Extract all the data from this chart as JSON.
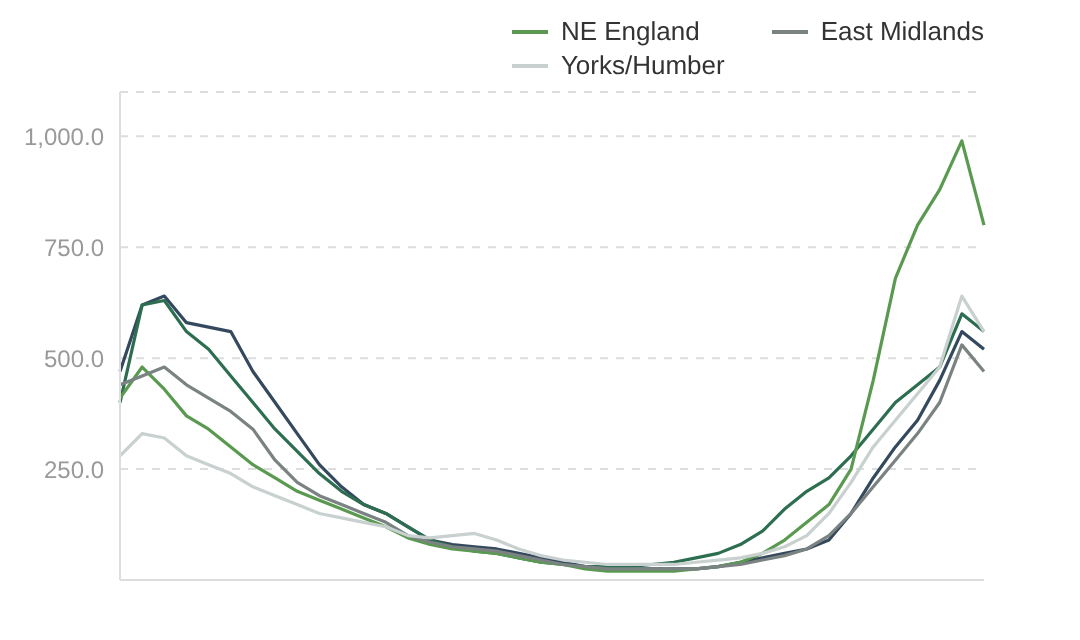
{
  "chart_data": {
    "type": "line",
    "categories": [
      null,
      null,
      null,
      null,
      null,
      null,
      null,
      null,
      null,
      null,
      null,
      null,
      null,
      null,
      null,
      null,
      null,
      null,
      null,
      null,
      null,
      null,
      null,
      null,
      null,
      null,
      null,
      null,
      null,
      null,
      null,
      null,
      null,
      null,
      null,
      null,
      null,
      null,
      null,
      null
    ],
    "series": [
      {
        "color": "#34495e",
        "values": [
          470,
          620,
          640,
          580,
          570,
          560,
          470,
          400,
          330,
          260,
          210,
          170,
          150,
          120,
          90,
          80,
          75,
          70,
          60,
          50,
          40,
          30,
          25,
          25,
          25,
          25,
          25,
          30,
          40,
          50,
          60,
          70,
          90,
          150,
          230,
          300,
          360,
          450,
          560,
          520
        ]
      },
      {
        "color": "#2e6e50",
        "values": [
          400,
          620,
          630,
          560,
          520,
          460,
          400,
          340,
          290,
          240,
          200,
          170,
          150,
          120,
          90,
          75,
          65,
          60,
          50,
          40,
          35,
          30,
          30,
          30,
          35,
          40,
          50,
          60,
          80,
          110,
          160,
          200,
          230,
          280,
          340,
          400,
          440,
          480,
          600,
          560
        ]
      },
      {
        "name": "NE England",
        "color": "#5a9a50",
        "values": [
          410,
          480,
          430,
          370,
          340,
          300,
          260,
          230,
          200,
          180,
          160,
          140,
          120,
          95,
          80,
          70,
          65,
          60,
          50,
          40,
          35,
          25,
          20,
          20,
          20,
          20,
          25,
          30,
          40,
          60,
          90,
          130,
          170,
          250,
          450,
          680,
          800,
          880,
          990,
          800
        ]
      },
      {
        "name": "East Midlands",
        "color": "#7a8282",
        "values": [
          440,
          460,
          480,
          440,
          410,
          380,
          340,
          270,
          220,
          190,
          170,
          150,
          130,
          100,
          85,
          75,
          70,
          65,
          55,
          45,
          35,
          30,
          25,
          25,
          25,
          25,
          25,
          30,
          35,
          45,
          55,
          70,
          100,
          150,
          210,
          270,
          330,
          400,
          530,
          470
        ]
      },
      {
        "name": "Yorks/Humber",
        "color": "#c8d0d0",
        "values": [
          280,
          330,
          320,
          280,
          260,
          240,
          210,
          190,
          170,
          150,
          140,
          130,
          120,
          100,
          95,
          100,
          105,
          90,
          70,
          55,
          45,
          40,
          35,
          35,
          35,
          35,
          40,
          45,
          50,
          60,
          75,
          100,
          150,
          220,
          300,
          360,
          420,
          480,
          640,
          560
        ]
      }
    ],
    "ylim": [
      0,
      1100
    ],
    "yticks": [
      {
        "value": 250,
        "label": "250.0"
      },
      {
        "value": 500,
        "label": "500.0"
      },
      {
        "value": 750,
        "label": "750.0"
      },
      {
        "value": 1000,
        "label": "1,000.0"
      }
    ],
    "grid": "y",
    "legend": "top right",
    "tick_labels": "y",
    "marker": "none",
    "line_style": "solid"
  }
}
